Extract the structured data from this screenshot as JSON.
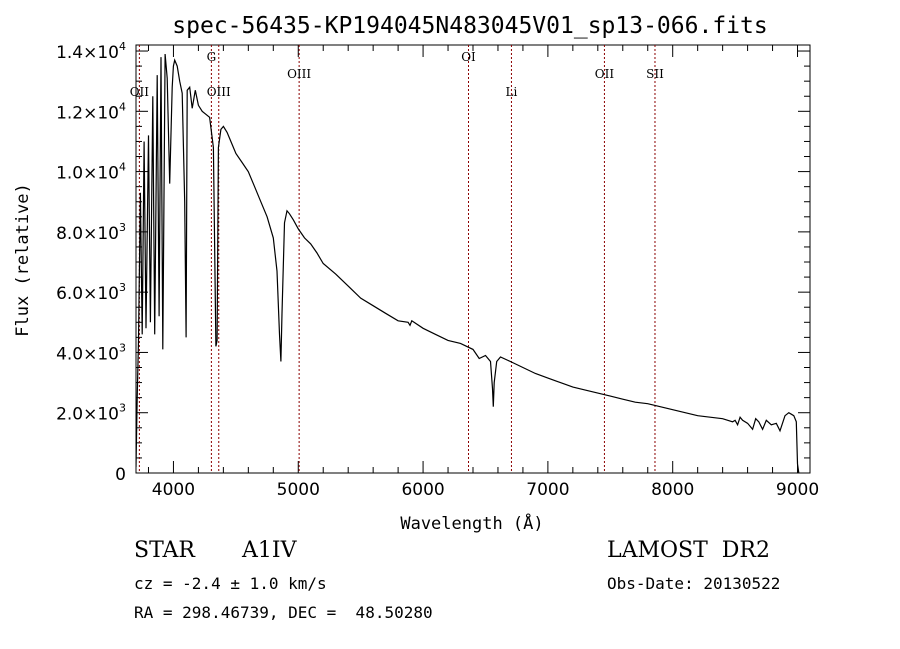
{
  "chart_data": {
    "type": "line",
    "title": "spec-56435-KP194045N483045V01_sp13-066.fits",
    "xlabel": "Wavelength (Å)",
    "ylabel": "Flux (relative)",
    "xlim": [
      3700,
      9100
    ],
    "ylim": [
      0,
      14200
    ],
    "grid": false,
    "x_ticks": [
      4000,
      5000,
      6000,
      7000,
      8000,
      9000
    ],
    "y_ticks": [
      {
        "value": 0,
        "base": "0",
        "exp": ""
      },
      {
        "value": 2000,
        "base": "2.0×10",
        "exp": "3"
      },
      {
        "value": 4000,
        "base": "4.0×10",
        "exp": "3"
      },
      {
        "value": 6000,
        "base": "6.0×10",
        "exp": "3"
      },
      {
        "value": 8000,
        "base": "8.0×10",
        "exp": "3"
      },
      {
        "value": 10000,
        "base": "1.0×10",
        "exp": "4"
      },
      {
        "value": 12000,
        "base": "1.2×10",
        "exp": "4"
      },
      {
        "value": 14000,
        "base": "1.4×10",
        "exp": "4"
      }
    ],
    "line_markers": [
      {
        "label": "OII",
        "x": 3727,
        "level": 3
      },
      {
        "label": "G",
        "x": 4304,
        "level": 1
      },
      {
        "label": "OIII",
        "x": 4363,
        "level": 3
      },
      {
        "label": "OIII",
        "x": 5007,
        "level": 2
      },
      {
        "label": "OI",
        "x": 6364,
        "level": 1
      },
      {
        "label": "Li",
        "x": 6708,
        "level": 3
      },
      {
        "label": "OII",
        "x": 7453,
        "level": 2
      },
      {
        "label": "SII",
        "x": 7858,
        "level": 2
      }
    ],
    "series": [
      {
        "x": [
          3700,
          3710,
          3720,
          3735,
          3750,
          3765,
          3780,
          3800,
          3815,
          3835,
          3850,
          3870,
          3885,
          3900,
          3915,
          3933,
          3950,
          3970,
          3990,
          4000,
          4010,
          4030,
          4050,
          4070,
          4090,
          4101,
          4110,
          4130,
          4150,
          4175,
          4200,
          4230,
          4260,
          4290,
          4320,
          4340,
          4350,
          4360,
          4380,
          4400,
          4430,
          4460,
          4500,
          4550,
          4600,
          4650,
          4700,
          4750,
          4800,
          4830,
          4850,
          4861,
          4870,
          4890,
          4910,
          4930,
          4960,
          5000,
          5050,
          5100,
          5150,
          5200,
          5300,
          5400,
          5500,
          5600,
          5700,
          5800,
          5880,
          5895,
          5910,
          6000,
          6100,
          6200,
          6300,
          6400,
          6450,
          6500,
          6540,
          6556,
          6563,
          6570,
          6590,
          6620,
          6700,
          6800,
          6900,
          7000,
          7100,
          7200,
          7300,
          7400,
          7500,
          7600,
          7700,
          7800,
          7900,
          8000,
          8100,
          8200,
          8300,
          8400,
          8480,
          8500,
          8520,
          8540,
          8560,
          8600,
          8640,
          8665,
          8690,
          8720,
          8750,
          8790,
          8830,
          8860,
          8900,
          8930,
          8950,
          8970,
          8990,
          9000,
          9010
        ],
        "y": [
          200,
          2500,
          4400,
          9300,
          4600,
          11000,
          4800,
          11200,
          5000,
          12500,
          4600,
          13200,
          5200,
          13800,
          4100,
          13900,
          13100,
          9600,
          12800,
          13500,
          13700,
          13500,
          13000,
          12600,
          9000,
          4500,
          12700,
          12800,
          12100,
          12700,
          12200,
          12000,
          11900,
          11800,
          10800,
          4200,
          4400,
          10800,
          11400,
          11500,
          11300,
          11000,
          10600,
          10300,
          10000,
          9500,
          9000,
          8500,
          7800,
          6700,
          4600,
          3700,
          5300,
          8300,
          8700,
          8600,
          8400,
          8100,
          7800,
          7600,
          7300,
          6950,
          6600,
          6200,
          5800,
          5550,
          5300,
          5050,
          5000,
          4900,
          5050,
          4800,
          4600,
          4400,
          4300,
          4100,
          3800,
          3900,
          3700,
          2800,
          2200,
          3000,
          3700,
          3850,
          3700,
          3500,
          3300,
          3150,
          3000,
          2850,
          2750,
          2650,
          2550,
          2450,
          2350,
          2300,
          2200,
          2100,
          2000,
          1900,
          1850,
          1800,
          1700,
          1750,
          1600,
          1850,
          1750,
          1650,
          1450,
          1800,
          1700,
          1450,
          1750,
          1600,
          1650,
          1400,
          1900,
          2000,
          1950,
          1900,
          1700,
          300,
          0
        ]
      }
    ]
  },
  "info": {
    "object_type": "STAR",
    "subclass": "A1IV",
    "survey": "LAMOST  DR2",
    "cz": "cz = -2.4 ± 1.0 km/s",
    "obs_date": "Obs-Date: 20130522",
    "coords": "RA = 298.46739, DEC =  48.50280"
  },
  "colors": {
    "line": "#000000",
    "markers": "#8b0000",
    "background": "#ffffff"
  }
}
